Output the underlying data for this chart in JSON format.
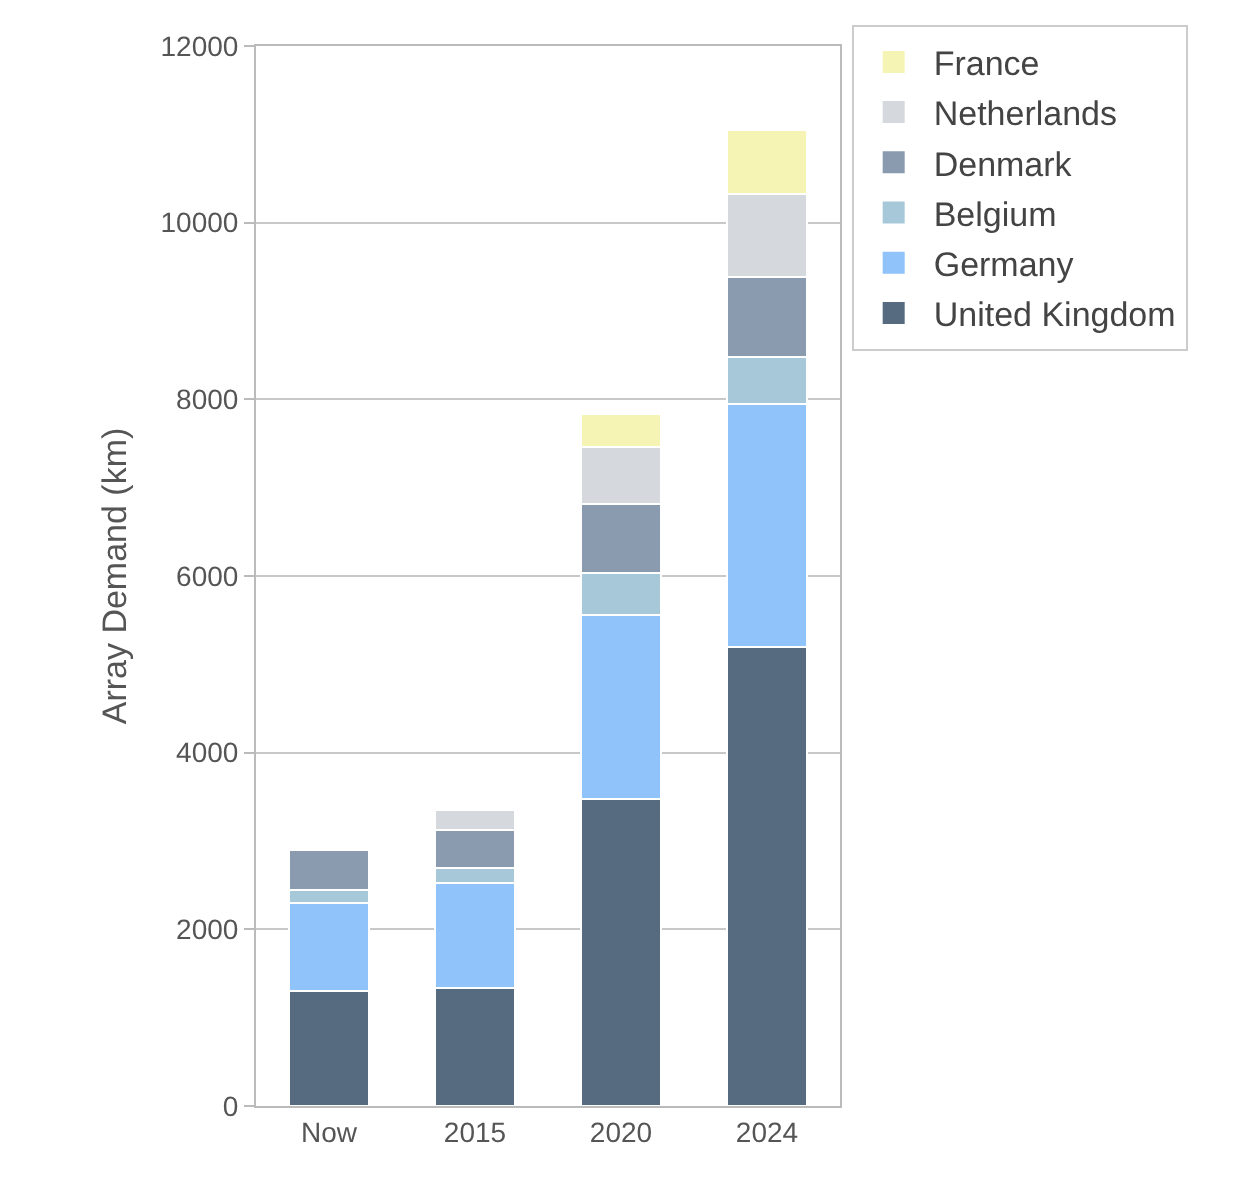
{
  "chart_data": {
    "type": "bar",
    "stacked": true,
    "ylabel": "Array Demand (km)",
    "categories": [
      "Now",
      "2015",
      "2020",
      "2024"
    ],
    "series": [
      {
        "name": "United Kingdom",
        "color": "#566b80",
        "values": [
          1300,
          1340,
          3480,
          5200
        ]
      },
      {
        "name": "Germany",
        "color": "#8fc3f9",
        "values": [
          1000,
          1180,
          2080,
          2750
        ]
      },
      {
        "name": "Belgium",
        "color": "#a7c8d8",
        "values": [
          150,
          180,
          470,
          530
        ]
      },
      {
        "name": "Denmark",
        "color": "#8a9bb0",
        "values": [
          450,
          420,
          780,
          900
        ]
      },
      {
        "name": "Netherlands",
        "color": "#d5d8dc",
        "values": [
          null,
          230,
          650,
          950
        ]
      },
      {
        "name": "France",
        "color": "#f6f4b4",
        "values": [
          null,
          null,
          370,
          720
        ]
      }
    ],
    "ylim": [
      0,
      12000
    ],
    "yticks": [
      0,
      2000,
      4000,
      6000,
      8000,
      10000,
      12000
    ],
    "grid": "y",
    "legend": "right"
  }
}
